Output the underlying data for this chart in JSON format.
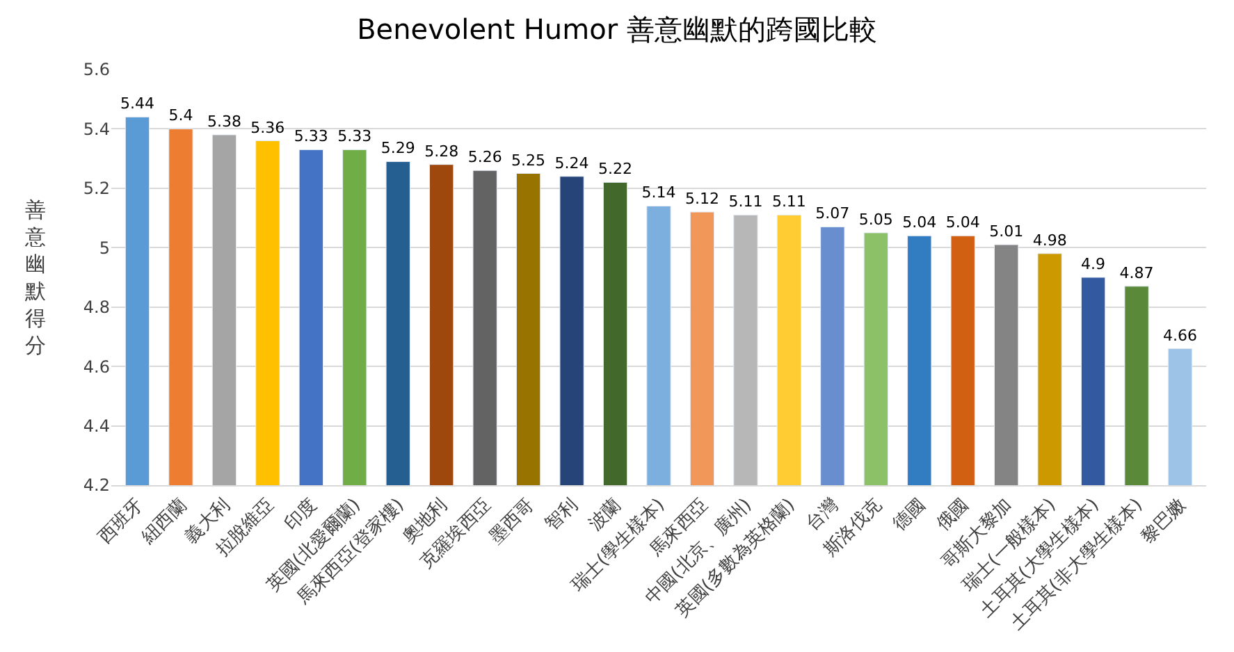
{
  "chart_data": {
    "type": "bar",
    "title": "Benevolent Humor 善意幽默的跨國比較",
    "ylabel": "善意幽默得分",
    "categories": [
      "西班牙",
      "紐西蘭",
      "義大利",
      "拉脫維亞",
      "印度",
      "英國(北愛爾蘭)",
      "馬來西亞(登家樓)",
      "奧地利",
      "克羅埃西亞",
      "墨西哥",
      "智利",
      "波蘭",
      "瑞士(學生樣本)",
      "馬來西亞",
      "中國(北京、廣州)",
      "英國(多數為英格蘭)",
      "台灣",
      "斯洛伐克",
      "德國",
      "俄國",
      "哥斯大黎加",
      "瑞士(一般樣本)",
      "土耳其(大學生樣本)",
      "土耳其(非大學生樣本)",
      "黎巴嫩"
    ],
    "values": [
      5.44,
      5.4,
      5.38,
      5.36,
      5.33,
      5.33,
      5.29,
      5.28,
      5.26,
      5.25,
      5.24,
      5.22,
      5.14,
      5.12,
      5.11,
      5.11,
      5.07,
      5.05,
      5.04,
      5.04,
      5.01,
      4.98,
      4.9,
      4.87,
      4.66
    ],
    "colors": [
      "#5b9bd5",
      "#ed7d31",
      "#a5a5a5",
      "#ffc000",
      "#4472c4",
      "#70ad47",
      "#255e91",
      "#9e480e",
      "#636363",
      "#997300",
      "#264478",
      "#43682b",
      "#7cafdd",
      "#f1975a",
      "#b7b7b7",
      "#ffcd33",
      "#698ed0",
      "#8cc168",
      "#327dc2",
      "#d26012",
      "#848484",
      "#cc9a00",
      "#335aa1",
      "#5a8a39",
      "#9dc3e6"
    ],
    "ylim": [
      4.2,
      5.6
    ],
    "yticks": [
      4.2,
      4.4,
      4.6,
      4.8,
      5,
      5.2,
      5.4,
      5.6
    ],
    "grid": "y",
    "data_labels": true
  }
}
